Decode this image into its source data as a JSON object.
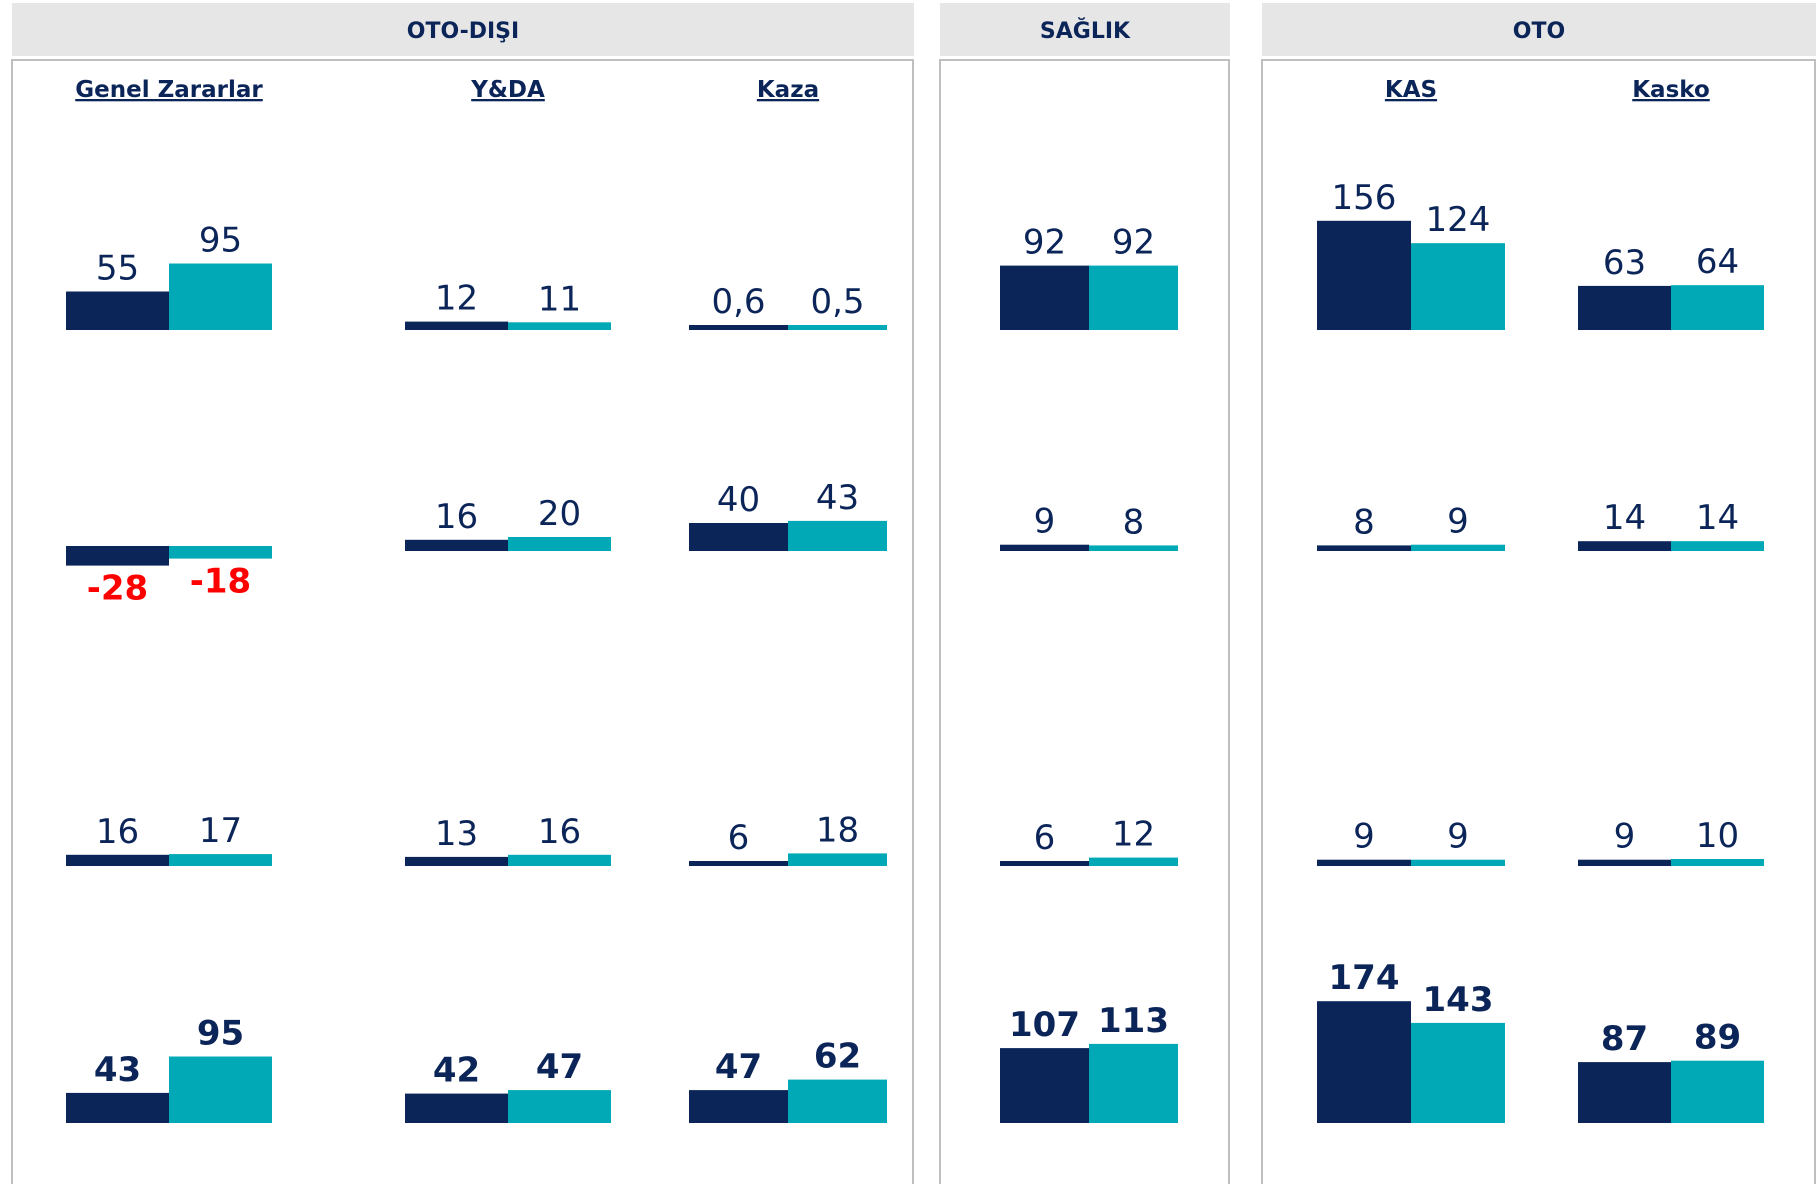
{
  "panels": [
    {
      "title": "OTO-DIŞI",
      "groups": [
        {
          "name": "Genel Zararlar",
          "rows": [
            {
              "values": [
                55,
                95
              ]
            },
            {
              "values": [
                -28,
                -18
              ]
            },
            {
              "values": [
                16,
                17
              ]
            },
            {
              "values": [
                43,
                95
              ]
            }
          ]
        },
        {
          "name": "Y&DA",
          "rows": [
            {
              "values": [
                12,
                11
              ]
            },
            {
              "values": [
                16,
                20
              ]
            },
            {
              "values": [
                13,
                16
              ]
            },
            {
              "values": [
                42,
                47
              ]
            }
          ]
        },
        {
          "name": "Kaza",
          "rows": [
            {
              "values": [
                0.6,
                0.5
              ],
              "value_labels": [
                "0,6",
                "0,5"
              ]
            },
            {
              "values": [
                40,
                43
              ]
            },
            {
              "values": [
                6,
                18
              ]
            },
            {
              "values": [
                47,
                62
              ]
            }
          ]
        }
      ]
    },
    {
      "title": "SAĞLIK",
      "groups": [
        {
          "rows": [
            {
              "values": [
                92,
                92
              ]
            },
            {
              "values": [
                9,
                8
              ]
            },
            {
              "values": [
                6,
                12
              ]
            },
            {
              "values": [
                107,
                113
              ]
            }
          ]
        }
      ]
    },
    {
      "title": "OTO",
      "groups": [
        {
          "name": "KAS",
          "rows": [
            {
              "values": [
                156,
                124
              ]
            },
            {
              "values": [
                8,
                9
              ]
            },
            {
              "values": [
                9,
                9
              ]
            },
            {
              "values": [
                174,
                143
              ]
            }
          ]
        },
        {
          "name": "Kasko",
          "rows": [
            {
              "values": [
                63,
                64
              ]
            },
            {
              "values": [
                14,
                14
              ]
            },
            {
              "values": [
                9,
                10
              ]
            },
            {
              "values": [
                87,
                89
              ]
            }
          ]
        }
      ]
    }
  ],
  "colors": [
    "#0b2559",
    "#00a9b5"
  ]
}
